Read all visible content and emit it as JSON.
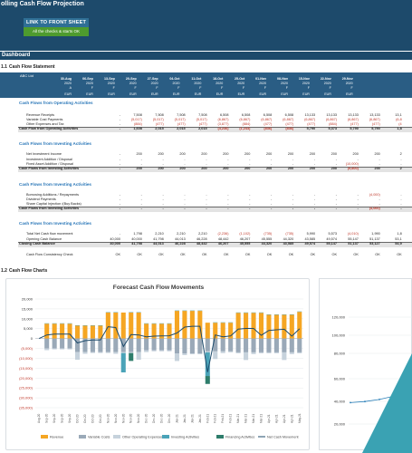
{
  "header": {
    "title": "olling Cash Flow Projection",
    "link_front_sheet": "LINK TO FRONT SHEET",
    "checks_note": "All the checks & starts OK"
  },
  "dashboard_label": "Dashboard",
  "section_1_1": {
    "num": "1.1",
    "label": "Cash Flow Statement"
  },
  "section_1_2": {
    "num": "1.2",
    "label": "Cash Flow Charts"
  },
  "table": {
    "entity": "ABC Ltd",
    "dates": [
      "30-Aug",
      "06-Sep",
      "13-Sep",
      "20-Sep",
      "27-Sep",
      "04-Oct",
      "11-Oct",
      "18-Oct",
      "25-Oct",
      "01-Nov",
      "08-Nov",
      "15-Nov",
      "22-Nov",
      "29-Nov"
    ],
    "years": [
      "2020",
      "2020",
      "2020",
      "2020",
      "2020",
      "2020",
      "2020",
      "2020",
      "2020",
      "2020",
      "2020",
      "2020",
      "2020",
      "2020"
    ],
    "flags": [
      "A",
      "F",
      "F",
      "F",
      "F",
      "F",
      "F",
      "F",
      "F",
      "F",
      "F",
      "F",
      "F",
      "F"
    ],
    "currency": [
      "EUR",
      "EUR",
      "EUR",
      "EUR",
      "EUR",
      "EUR",
      "EUR",
      "EUR",
      "EUR",
      "EUR",
      "EUR",
      "EUR",
      "EUR",
      "EUR"
    ],
    "operating": {
      "title": "Cash Flows from Operating Activities",
      "rows": [
        {
          "label": "Revenue Receipts",
          "values": [
            "-",
            "7,508",
            "7,508",
            "7,508",
            "7,508",
            "6,508",
            "6,508",
            "6,508",
            "6,508",
            "13,133",
            "13,133",
            "13,133",
            "13,133",
            "13,1"
          ]
        },
        {
          "label": "Variable Cost Payments",
          "values": [
            "-",
            "(5,017)",
            "(5,017)",
            "(5,017)",
            "(5,017)",
            "(6,867)",
            "(6,867)",
            "(6,867)",
            "(6,867)",
            "(6,867)",
            "(6,867)",
            "(6,867)",
            "(6,867)",
            "(6,8"
          ]
        },
        {
          "label": "Other Expenses and Tax",
          "values": [
            "-",
            "(884)",
            "(477)",
            "(477)",
            "(477)",
            "(3,877)",
            "(884)",
            "(477)",
            "(477)",
            "(477)",
            "(884)",
            "(477)",
            "(477)",
            "(4"
          ]
        }
      ],
      "total": {
        "label": "Cash Flow from Operating Activities",
        "values": [
          "-",
          "1,608",
          "2,015",
          "2,015",
          "2,015",
          "(4,236)",
          "(1,243)",
          "(836)",
          "(836)",
          "5,790",
          "5,373",
          "5,790",
          "5,790",
          "1,8"
        ]
      }
    },
    "investing": {
      "title": "Cash Flows from Investing Activities",
      "rows": [
        {
          "label": "Net Investment Income",
          "values": [
            "-",
            "200",
            "200",
            "200",
            "200",
            "200",
            "200",
            "200",
            "200",
            "200",
            "200",
            "200",
            "200",
            "2"
          ]
        },
        {
          "label": "Investment Addition / Disposal",
          "values": [
            "-",
            "-",
            "-",
            "-",
            "-",
            "-",
            "-",
            "-",
            "-",
            "-",
            "-",
            "-",
            "-",
            "-"
          ]
        },
        {
          "label": "Fixed Asset Addition / Disposal",
          "values": [
            "-",
            "-",
            "-",
            "-",
            "-",
            "-",
            "-",
            "-",
            "-",
            "-",
            "-",
            "(10,000)",
            "-",
            "-"
          ]
        }
      ],
      "total": {
        "label": "Cash Flows from Investing Activities",
        "values": [
          "-",
          "200",
          "200",
          "200",
          "200",
          "200",
          "200",
          "200",
          "200",
          "200",
          "200",
          "(9,800)",
          "200",
          "2"
        ]
      }
    },
    "financing": {
      "title": "Cash Flows from Investing Activities",
      "rows": [
        {
          "label": "Borrowing Additions / Repayments",
          "values": [
            "-",
            "-",
            "-",
            "-",
            "-",
            "-",
            "-",
            "-",
            "-",
            "-",
            "-",
            "-",
            "(4,000)",
            "-"
          ]
        },
        {
          "label": "Dividend Payments",
          "values": [
            "-",
            "-",
            "-",
            "-",
            "-",
            "-",
            "-",
            "-",
            "-",
            "-",
            "-",
            "-",
            "-",
            "-"
          ]
        },
        {
          "label": "Share Capital Injection /(Buy Backs)",
          "values": [
            "-",
            "-",
            "-",
            "-",
            "-",
            "-",
            "-",
            "-",
            "-",
            "-",
            "-",
            "-",
            "-",
            "-"
          ]
        }
      ],
      "total": {
        "label": "Cash Flows from Investing Activities",
        "values": [
          "-",
          "-",
          "-",
          "-",
          "-",
          "-",
          "-",
          "-",
          "-",
          "-",
          "-",
          "-",
          "(4,000)",
          "-"
        ]
      }
    },
    "balance": {
      "title": "Cash Flows from Investing Activities",
      "rows": [
        {
          "label": "Total Net Cash flow movement",
          "values": [
            "-",
            "1,798",
            "2,210",
            "2,210",
            "2,210",
            "(2,236)",
            "(1,102)",
            "(735)",
            "(735)",
            "5,990",
            "5,573",
            "(4,010)",
            "1,990",
            "1,8"
          ]
        },
        {
          "label": "Opening Cash Balance",
          "values": [
            "40,000",
            "40,000",
            "41,798",
            "44,013",
            "46,228",
            "48,442",
            "46,207",
            "45,555",
            "44,320",
            "43,585",
            "49,574",
            "55,147",
            "51,137",
            "53,1"
          ]
        }
      ],
      "total": {
        "label": "Closing Cash Balance",
        "values": [
          "40,000",
          "41,798",
          "44,013",
          "46,228",
          "48,442",
          "46,207",
          "45,555",
          "44,320",
          "43,585",
          "49,574",
          "55,147",
          "51,137",
          "53,127",
          "54,9"
        ]
      },
      "check": {
        "label": "Cash Flow Consistency Check",
        "values": [
          "OK",
          "OK",
          "OK",
          "OK",
          "OK",
          "OK",
          "OK",
          "OK",
          "OK",
          "OK",
          "OK",
          "OK",
          "OK",
          "OK"
        ]
      }
    }
  },
  "chart_data": [
    {
      "type": "bar",
      "title": "Forecast Cash Flow Movements",
      "ylim": [
        -35000,
        20000
      ],
      "yticks": [
        "20,000",
        "15,000",
        "10,000",
        "5,000",
        "0",
        "(5,000)",
        "(10,000)",
        "(15,000)",
        "(20,000)",
        "(25,000)",
        "(30,000)",
        "(35,000)"
      ],
      "categories": [
        "Aug-20",
        "Sep-20",
        "Sep-20",
        "Sep-20",
        "Sep-20",
        "Oct-20",
        "Oct-20",
        "Oct-20",
        "Oct-20",
        "Nov-20",
        "Nov-20",
        "Nov-20",
        "Nov-20",
        "Nov-20",
        "Dec-20",
        "Dec-20",
        "Dec-20",
        "Dec-20",
        "Jan-21",
        "Jan-21",
        "Jan-21",
        "Jan-21",
        "Feb-21",
        "Feb-21",
        "Feb-21",
        "Feb-21",
        "Mar-21",
        "Mar-21",
        "Mar-21",
        "Mar-21",
        "Apr-21",
        "Apr-21",
        "Apr-21",
        "Apr-21",
        "May-21"
      ],
      "series": [
        {
          "name": "Revenue",
          "color": "#f5a623",
          "values": [
            0,
            7508,
            7508,
            7508,
            7508,
            6508,
            6508,
            6508,
            6508,
            13133,
            13133,
            13133,
            13133,
            13133,
            7500,
            7500,
            7500,
            7500,
            14000,
            14000,
            14000,
            14000,
            8000,
            8000,
            8000,
            8000,
            13000,
            13000,
            13000,
            13000,
            12000,
            12000,
            12000,
            12000,
            13500
          ]
        },
        {
          "name": "Variable Costs",
          "color": "#9aa9b8",
          "values": [
            0,
            -5017,
            -5017,
            -5017,
            -5017,
            -6867,
            -6867,
            -6867,
            -6867,
            -6867,
            -6867,
            -6867,
            -6867,
            -6867,
            -6000,
            -6000,
            -6000,
            -6000,
            -7500,
            -7500,
            -7500,
            -7500,
            -6500,
            -6500,
            -6500,
            -6500,
            -7000,
            -7000,
            -7000,
            -7000,
            -7000,
            -7000,
            -7000,
            -7000,
            -7000
          ]
        },
        {
          "name": "Other Operating Expenses",
          "color": "#c6d2dc",
          "values": [
            0,
            -884,
            -477,
            -477,
            -477,
            -3877,
            -884,
            -477,
            -477,
            -477,
            -884,
            -477,
            -477,
            -3877,
            -884,
            -477,
            -477,
            -477,
            -3877,
            -884,
            -477,
            -477,
            -477,
            -3877,
            -884,
            -477,
            -477,
            -3877,
            -884,
            -477,
            -477,
            -477,
            -3877,
            -884,
            -477
          ]
        },
        {
          "name": "Investing Activities",
          "color": "#4aa3b8",
          "values": [
            0,
            200,
            200,
            200,
            200,
            200,
            200,
            200,
            200,
            200,
            200,
            -9800,
            200,
            200,
            200,
            200,
            200,
            200,
            200,
            200,
            200,
            200,
            -12000,
            200,
            200,
            200,
            200,
            200,
            200,
            200,
            200,
            200,
            200,
            200,
            200
          ]
        },
        {
          "name": "Financing Activities",
          "color": "#2e7d6b",
          "values": [
            0,
            0,
            0,
            0,
            0,
            0,
            0,
            0,
            0,
            0,
            0,
            0,
            -4000,
            0,
            0,
            0,
            0,
            0,
            0,
            0,
            0,
            0,
            -4000,
            0,
            0,
            0,
            0,
            0,
            0,
            0,
            0,
            0,
            0,
            0,
            0
          ]
        },
        {
          "name": "Net Cash Movement",
          "color": "#1d4a6b",
          "values": [
            0,
            1798,
            2210,
            2210,
            2210,
            -2236,
            -1102,
            -735,
            -735,
            5990,
            5573,
            -4010,
            1990,
            1800,
            900,
            1200,
            1300,
            1400,
            2800,
            5800,
            6200,
            6200,
            -17000,
            1800,
            900,
            1300,
            4800,
            5100,
            5100,
            1600,
            4100,
            4400,
            4700,
            1200,
            4900
          ]
        }
      ]
    },
    {
      "type": "line",
      "yticks": [
        "120,000",
        "100,000",
        "80,000",
        "60,000",
        "40,000",
        "20,000"
      ],
      "series": [
        {
          "name": "",
          "color": "#2a7fb8",
          "values": [
            40000,
            41000,
            43000,
            46000,
            50000
          ]
        }
      ]
    }
  ]
}
